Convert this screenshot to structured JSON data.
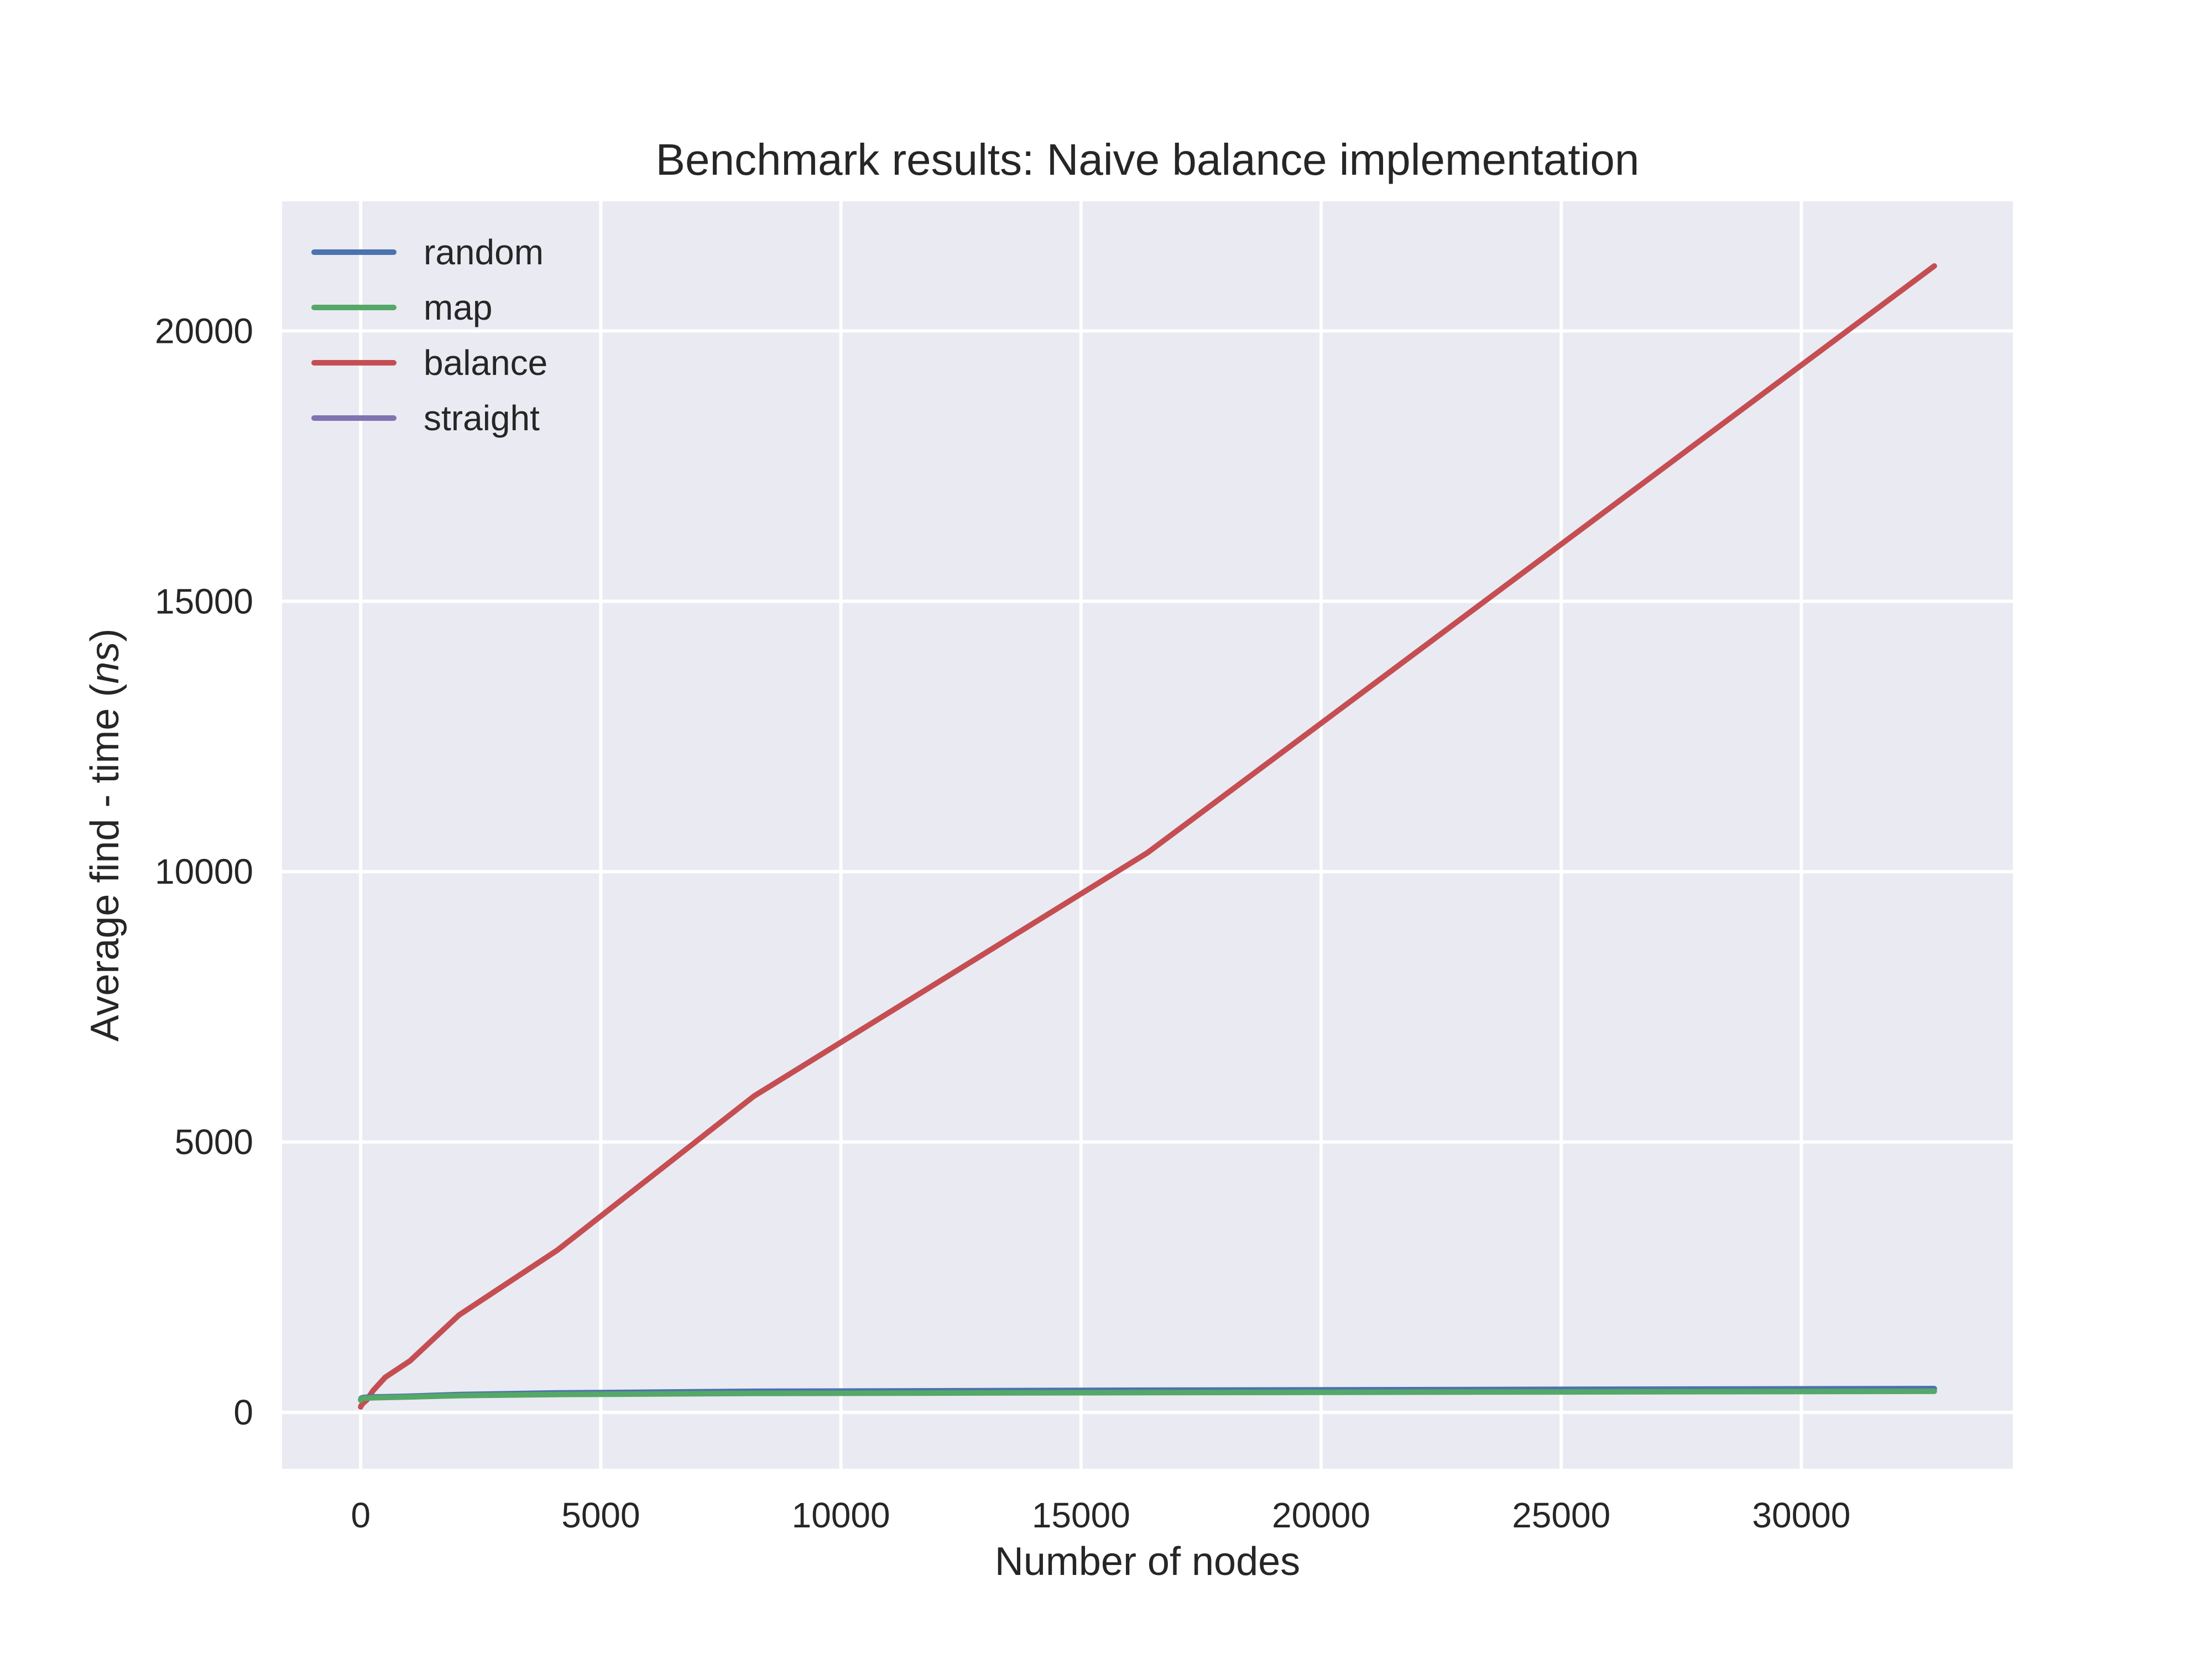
{
  "chart_data": {
    "type": "line",
    "title": "Benchmark results: Naive balance implementation",
    "xlabel": "Number of nodes",
    "ylabel_prefix": "Average find - time (",
    "ylabel_unit": "ns",
    "ylabel_suffix": ")",
    "xlim": [
      -1638,
      34406
    ],
    "ylim": [
      -1043,
      22397
    ],
    "xticks": [
      0,
      5000,
      10000,
      15000,
      20000,
      25000,
      30000
    ],
    "xtick_labels": [
      "0",
      "5000",
      "10000",
      "15000",
      "20000",
      "25000",
      "30000"
    ],
    "yticks": [
      0,
      5000,
      10000,
      15000,
      20000
    ],
    "ytick_labels": [
      "0",
      "5000",
      "10000",
      "15000",
      "20000"
    ],
    "grid": true,
    "legend_position": "upper-left",
    "background_color": "#eaeaf2",
    "series": [
      {
        "name": "random",
        "color": "#4c72b0",
        "x": [
          1,
          2,
          4,
          8,
          16,
          32,
          64,
          128,
          256,
          512,
          1024,
          2048,
          4096,
          8192,
          16384,
          32768
        ],
        "y": [
          230,
          240,
          250,
          260,
          265,
          270,
          275,
          280,
          285,
          290,
          300,
          330,
          360,
          390,
          410,
          440
        ]
      },
      {
        "name": "map",
        "color": "#55a868",
        "x": [
          1,
          2,
          4,
          8,
          16,
          32,
          64,
          128,
          256,
          512,
          1024,
          2048,
          4096,
          8192,
          16384,
          32768
        ],
        "y": [
          225,
          235,
          245,
          250,
          255,
          260,
          262,
          265,
          270,
          275,
          285,
          310,
          330,
          350,
          365,
          390
        ]
      },
      {
        "name": "balance",
        "color": "#c44e52",
        "x": [
          1,
          2,
          4,
          8,
          16,
          32,
          64,
          128,
          256,
          512,
          1024,
          2048,
          4096,
          8192,
          16384,
          32768
        ],
        "y": [
          100,
          105,
          110,
          120,
          130,
          150,
          180,
          230,
          400,
          650,
          950,
          1800,
          3000,
          5850,
          10350,
          21200
        ]
      },
      {
        "name": "straight",
        "color": "#8172b2",
        "x": [],
        "y": []
      }
    ]
  }
}
